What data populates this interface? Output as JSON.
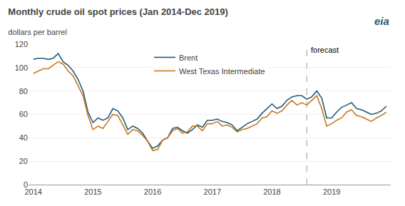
{
  "chart_data": {
    "type": "line",
    "title": "Monthly crude oil spot prices (Jan 2014-Dec 2019)",
    "subtitle": "dollars per barrel",
    "x": [
      2014,
      2014.0833,
      2014.1667,
      2014.25,
      2014.3333,
      2014.4167,
      2014.5,
      2014.5833,
      2014.6667,
      2014.75,
      2014.8333,
      2014.9167,
      2015,
      2015.0833,
      2015.1667,
      2015.25,
      2015.3333,
      2015.4167,
      2015.5,
      2015.5833,
      2015.6667,
      2015.75,
      2015.8333,
      2015.9167,
      2016,
      2016.0833,
      2016.1667,
      2016.25,
      2016.3333,
      2016.4167,
      2016.5,
      2016.5833,
      2016.6667,
      2016.75,
      2016.8333,
      2016.9167,
      2017,
      2017.0833,
      2017.1667,
      2017.25,
      2017.3333,
      2017.4167,
      2017.5,
      2017.5833,
      2017.6667,
      2017.75,
      2017.8333,
      2017.9167,
      2018,
      2018.0833,
      2018.1667,
      2018.25,
      2018.3333,
      2018.4167,
      2018.5,
      2018.5833,
      2018.6667,
      2018.75,
      2018.8333,
      2018.9167,
      2019,
      2019.0833,
      2019.1667,
      2019.25,
      2019.3333,
      2019.4167,
      2019.5,
      2019.5833,
      2019.6667,
      2019.75,
      2019.8333,
      2019.9167
    ],
    "series": [
      {
        "name": "Brent",
        "color": "#1f5c7a",
        "values": [
          107,
          108,
          108,
          107,
          108,
          112,
          105,
          102,
          97,
          90,
          80,
          62,
          53,
          57,
          55,
          57,
          65,
          63,
          57,
          47,
          50,
          48,
          44,
          37,
          31,
          33,
          38,
          40,
          48,
          49,
          46,
          44,
          47,
          51,
          49,
          55,
          55,
          56,
          54,
          53,
          51,
          46,
          49,
          52,
          54,
          56,
          61,
          65,
          69,
          65,
          67,
          72,
          75,
          76,
          76,
          73,
          75,
          80,
          74,
          57,
          57,
          62,
          66,
          68,
          70,
          65,
          64,
          62,
          60,
          61,
          63,
          67
        ]
      },
      {
        "name": "West Texas Intermediate",
        "color": "#c87820",
        "values": [
          95,
          97,
          99,
          99,
          102,
          105,
          103,
          97,
          93,
          84,
          76,
          59,
          47,
          50,
          48,
          54,
          60,
          59,
          51,
          43,
          47,
          46,
          42,
          37,
          29,
          30,
          38,
          40,
          46,
          48,
          44,
          45,
          50,
          50,
          46,
          52,
          52,
          54,
          50,
          51,
          49,
          45,
          47,
          48,
          50,
          52,
          57,
          58,
          63,
          61,
          63,
          68,
          72,
          68,
          70,
          68,
          72,
          76,
          65,
          50,
          52,
          55,
          57,
          62,
          64,
          59,
          58,
          56,
          54,
          57,
          59,
          62
        ]
      }
    ],
    "xlim": [
      2013.92,
      2019.99
    ],
    "xticks": [
      2014,
      2015,
      2016,
      2017,
      2018,
      2019
    ],
    "ylim": [
      0,
      120
    ],
    "yticks": [
      0,
      20,
      40,
      60,
      80,
      100,
      120
    ],
    "grid": "y",
    "legend": "upper center",
    "vertical_lines": [
      {
        "x": 2018.583,
        "label": "forecast",
        "line_style": "dashed"
      }
    ],
    "annotations": [
      {
        "text": "eia",
        "color": "#1f5c7a"
      }
    ]
  }
}
